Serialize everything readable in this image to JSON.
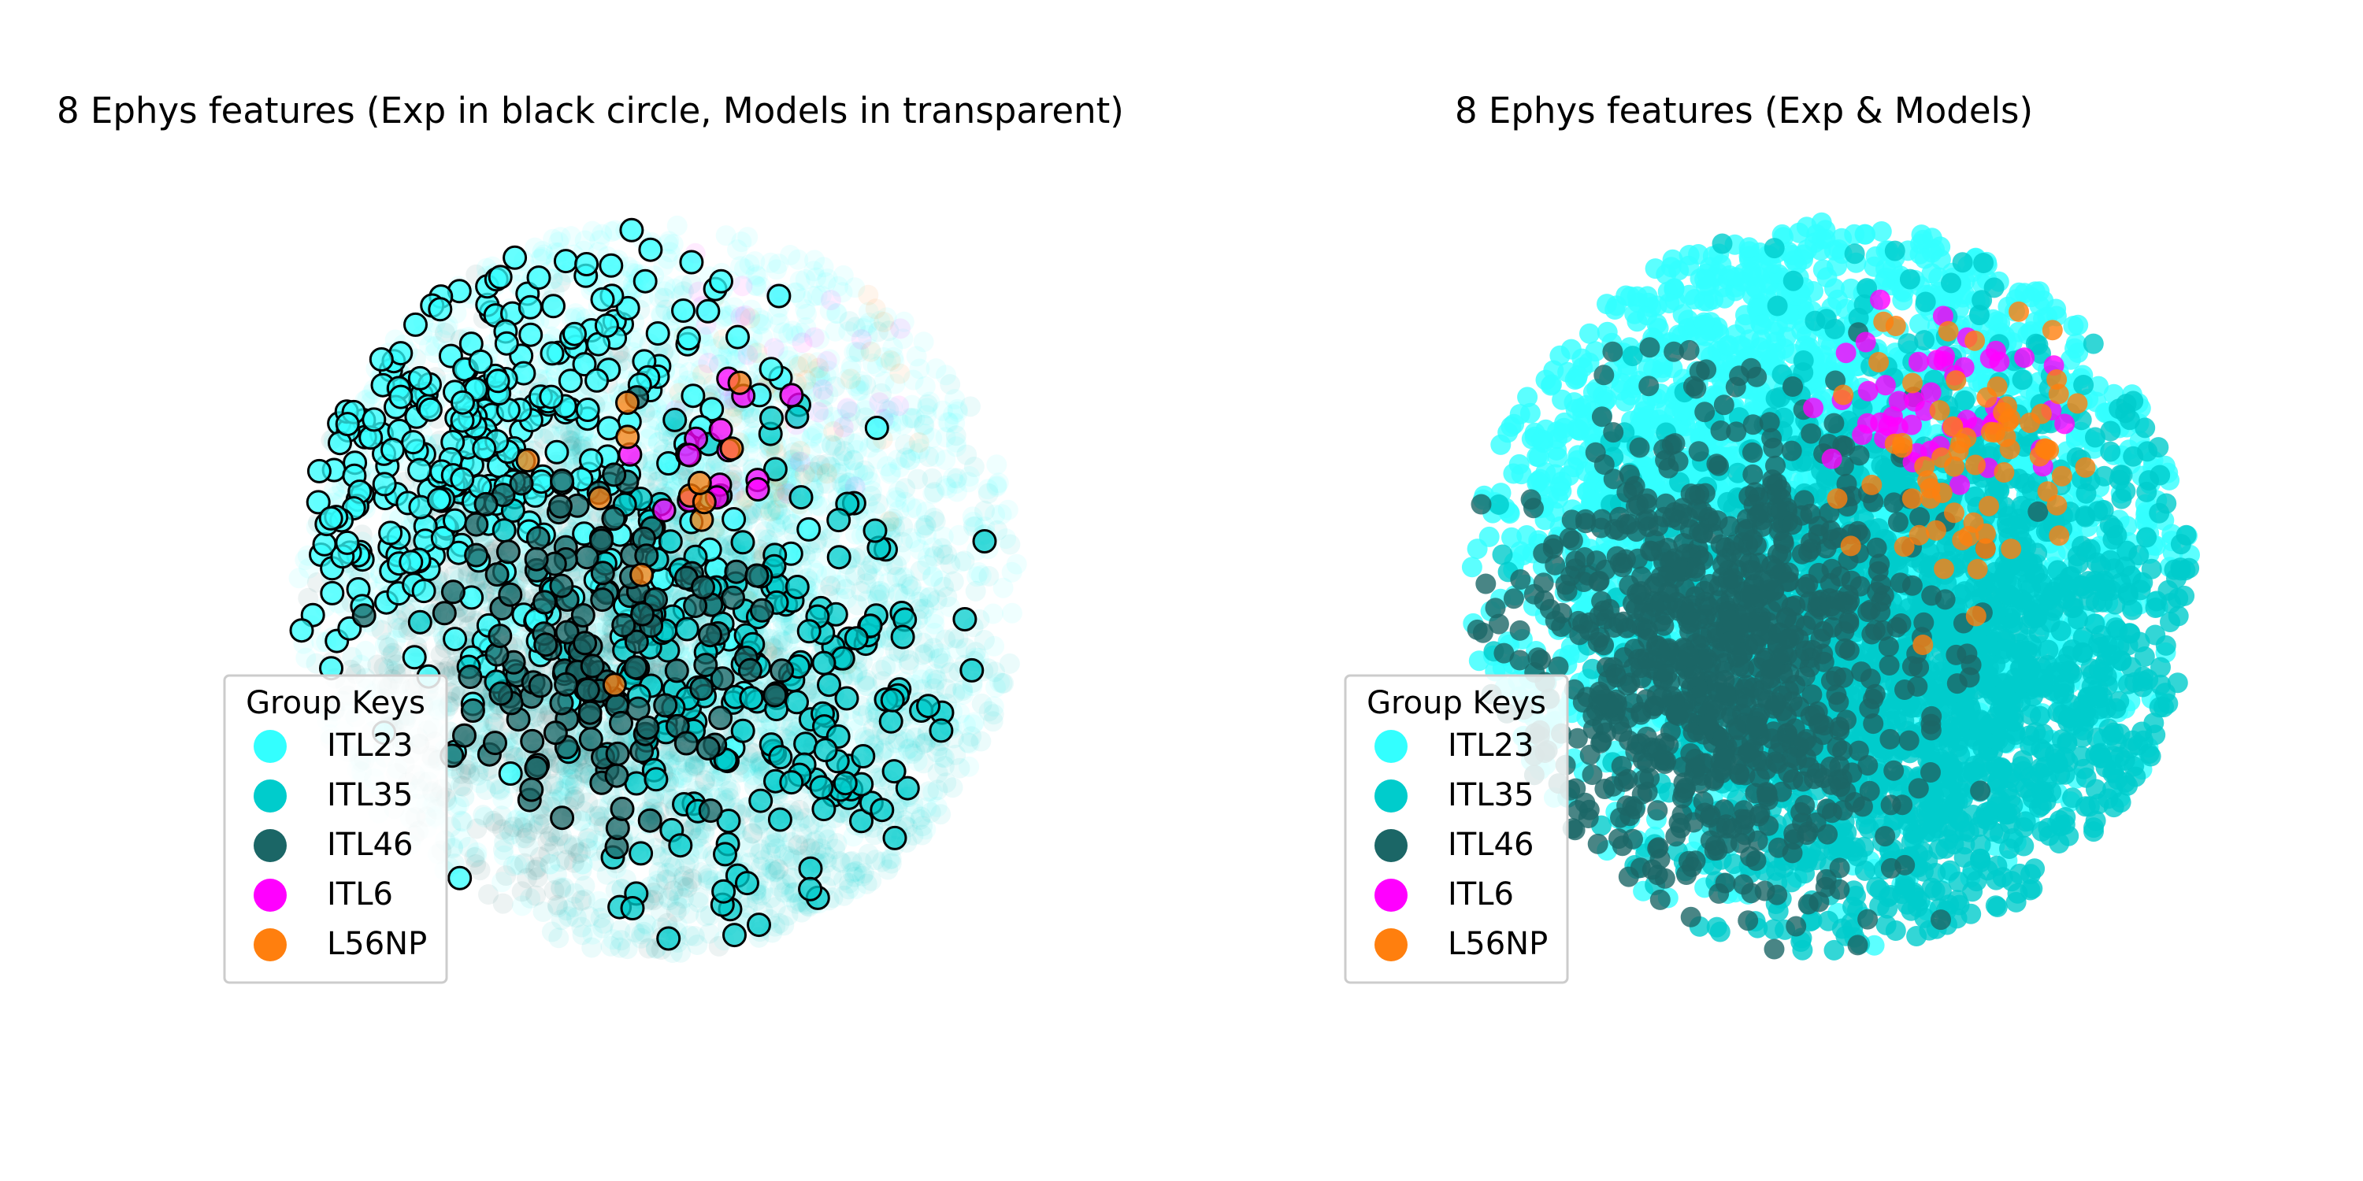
{
  "chart_data": [
    {
      "type": "scatter",
      "title": "8 Ephys features (Exp in black circle, Models in transparent)",
      "xlabel": "",
      "ylabel": "",
      "axes_visible": false,
      "grid": false,
      "legend": {
        "title": "Group Keys",
        "placement": "lower-left",
        "entries": [
          "ITL23",
          "ITL35",
          "ITL46",
          "ITL6",
          "L56NP"
        ]
      },
      "series": [
        {
          "name": "ITL23",
          "color": "#33ffff",
          "exp_centroid": [
            -1.6,
            1.2
          ],
          "model_centroid": [
            -0.1,
            0.6
          ],
          "model_alpha": 0.08,
          "exp_edge": "#000000"
        },
        {
          "name": "ITL35",
          "color": "#00cccc",
          "exp_centroid": [
            0.8,
            -1.1
          ],
          "model_centroid": [
            0.7,
            -1.4
          ],
          "model_alpha": 0.08,
          "exp_edge": "#000000"
        },
        {
          "name": "ITL46",
          "color": "#1b6666",
          "exp_centroid": [
            -0.4,
            -0.5
          ],
          "model_centroid": [
            -0.9,
            -0.6
          ],
          "model_alpha": 0.08,
          "exp_edge": "#000000"
        },
        {
          "name": "ITL6",
          "color": "#ff00ff",
          "exp_centroid": [
            0.5,
            0.9
          ],
          "model_centroid": [
            0.8,
            1.4
          ],
          "model_alpha": 0.08,
          "exp_edge": "#000000"
        },
        {
          "name": "L56NP",
          "color": "#ff7f0e",
          "exp_centroid": [
            0.1,
            0.3
          ],
          "model_centroid": [
            0.9,
            1.1
          ],
          "model_alpha": 0.08,
          "exp_edge": "#000000"
        }
      ]
    },
    {
      "type": "scatter",
      "title": "8 Ephys features (Exp & Models)",
      "xlabel": "",
      "ylabel": "",
      "axes_visible": false,
      "grid": false,
      "legend": {
        "title": "Group Keys",
        "placement": "lower-left",
        "entries": [
          "ITL23",
          "ITL35",
          "ITL46",
          "ITL6",
          "L56NP"
        ]
      },
      "series": [
        {
          "name": "ITL23",
          "color": "#33ffff",
          "centroid": [
            -0.2,
            0.7
          ],
          "alpha": 0.8
        },
        {
          "name": "ITL35",
          "color": "#00cccc",
          "centroid": [
            0.8,
            -0.9
          ],
          "alpha": 0.8
        },
        {
          "name": "ITL46",
          "color": "#1b6666",
          "centroid": [
            -0.9,
            -0.6
          ],
          "alpha": 0.8
        },
        {
          "name": "ITL6",
          "color": "#ff00ff",
          "centroid": [
            0.9,
            1.3
          ],
          "alpha": 0.8
        },
        {
          "name": "L56NP",
          "color": "#ff7f0e",
          "centroid": [
            1.1,
            1.0
          ],
          "alpha": 0.8
        }
      ]
    }
  ]
}
